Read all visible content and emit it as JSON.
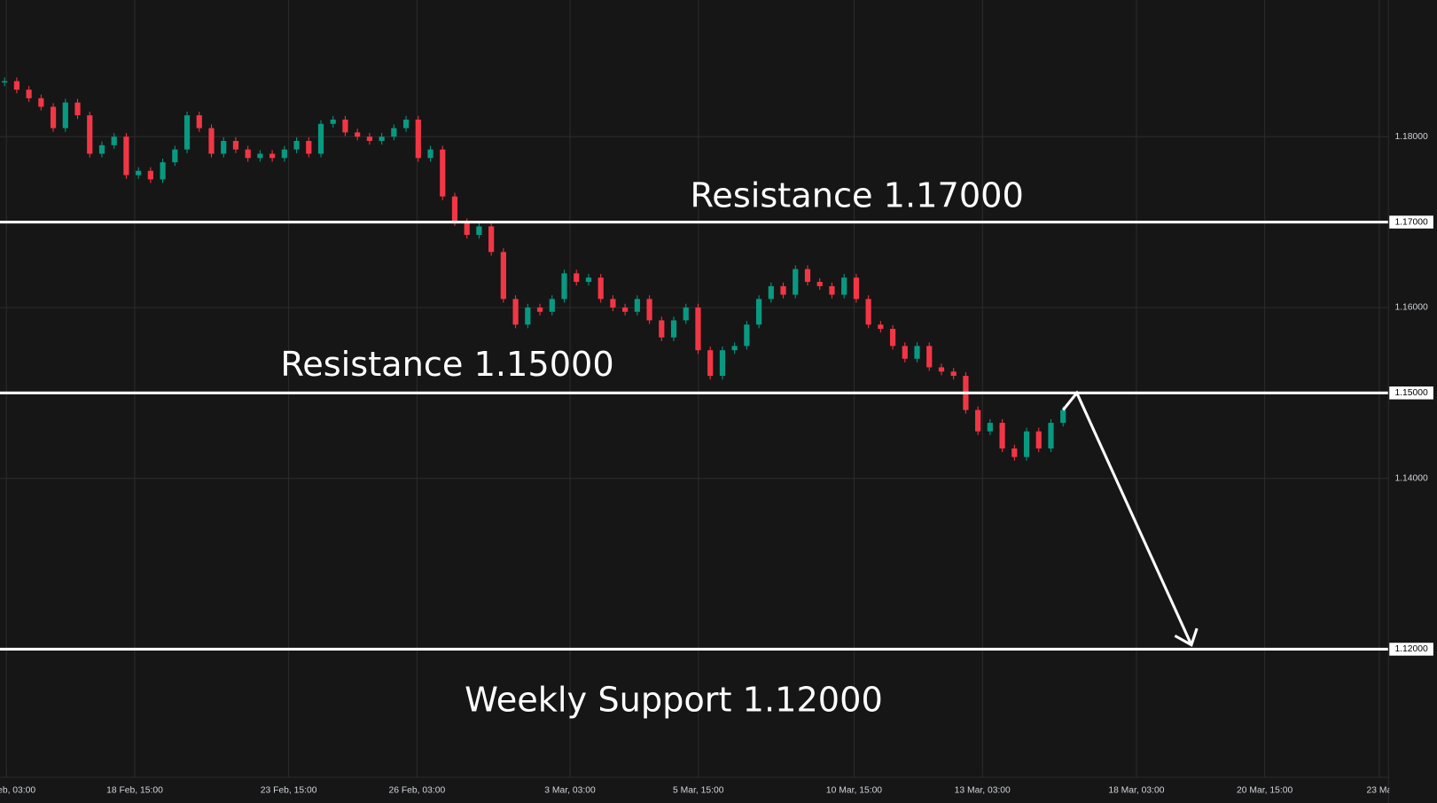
{
  "chart_data": {
    "type": "candlestick",
    "closes": [
      1.1865,
      1.1855,
      1.1845,
      1.1835,
      1.181,
      1.184,
      1.1825,
      1.178,
      1.179,
      1.18,
      1.1755,
      1.176,
      1.175,
      1.177,
      1.1785,
      1.1825,
      1.181,
      1.178,
      1.1795,
      1.1785,
      1.1775,
      1.178,
      1.1775,
      1.1785,
      1.1795,
      1.178,
      1.1815,
      1.182,
      1.1805,
      1.18,
      1.1795,
      1.18,
      1.181,
      1.182,
      1.1775,
      1.1785,
      1.173,
      1.17,
      1.1685,
      1.1695,
      1.1665,
      1.161,
      1.158,
      1.16,
      1.1595,
      1.161,
      1.164,
      1.163,
      1.1635,
      1.161,
      1.16,
      1.1595,
      1.161,
      1.1585,
      1.1565,
      1.1585,
      1.16,
      1.155,
      1.152,
      1.155,
      1.1555,
      1.158,
      1.161,
      1.1625,
      1.1615,
      1.1645,
      1.163,
      1.1625,
      1.1615,
      1.1635,
      1.161,
      1.158,
      1.1575,
      1.1555,
      1.154,
      1.1555,
      1.153,
      1.1525,
      1.152,
      1.148,
      1.1455,
      1.1465,
      1.1435,
      1.1425,
      1.1455,
      1.1435,
      1.1465,
      1.148
    ],
    "up_color": "#089981",
    "down_color": "#f23645",
    "ylim": [
      1.105,
      1.196
    ],
    "yticks": [
      {
        "value": 1.18,
        "label": "1.18000"
      },
      {
        "value": 1.17,
        "label": "1.17000"
      },
      {
        "value": 1.16,
        "label": "1.16000"
      },
      {
        "value": 1.15,
        "label": "1.15000"
      },
      {
        "value": 1.14,
        "label": "1.14000"
      },
      {
        "value": 1.12,
        "label": "1.12000"
      }
    ],
    "xticklabels": [
      "eb, 03:00",
      "18 Feb, 15:00",
      "23 Feb, 15:00",
      "26 Feb, 03:00",
      "3 Mar, 03:00",
      "5 Mar, 15:00",
      "10 Mar, 15:00",
      "13 Mar, 03:00",
      "18 Mar, 03:00",
      "20 Mar, 15:00",
      "23 Ma"
    ],
    "grid": true,
    "levels": [
      {
        "value": 1.17,
        "label": "Resistance 1.17000"
      },
      {
        "value": 1.15,
        "label": "Resistance 1.15000"
      },
      {
        "value": 1.12,
        "label": "Weekly Support 1.12000"
      }
    ],
    "projection": [
      1.148,
      1.15,
      1.1205
    ]
  }
}
